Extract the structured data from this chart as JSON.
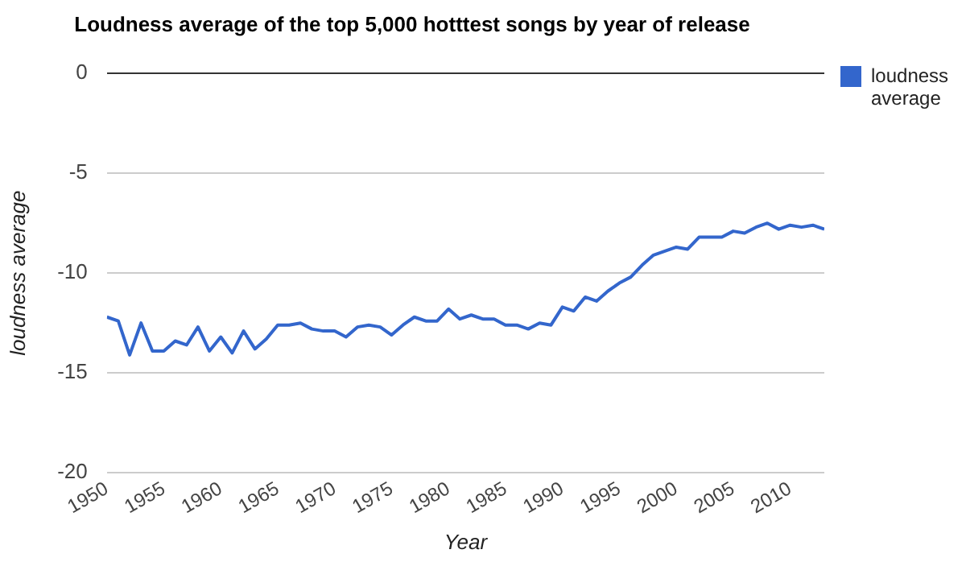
{
  "chart_data": {
    "type": "line",
    "title": "Loudness average of the top 5,000 hotttest songs by year of release",
    "xlabel": "Year",
    "ylabel": "loudness average",
    "x": [
      1950,
      1951,
      1952,
      1953,
      1954,
      1955,
      1956,
      1957,
      1958,
      1959,
      1960,
      1961,
      1962,
      1963,
      1964,
      1965,
      1966,
      1967,
      1968,
      1969,
      1970,
      1971,
      1972,
      1973,
      1974,
      1975,
      1976,
      1977,
      1978,
      1979,
      1980,
      1981,
      1982,
      1983,
      1984,
      1985,
      1986,
      1987,
      1988,
      1989,
      1990,
      1991,
      1992,
      1993,
      1994,
      1995,
      1996,
      1997,
      1998,
      1999,
      2000,
      2001,
      2002,
      2003,
      2004,
      2005,
      2006,
      2007,
      2008,
      2009,
      2010,
      2011,
      2012,
      2013
    ],
    "series": [
      {
        "name": "loudness average",
        "color": "#3366cc",
        "values": [
          -12.2,
          -12.4,
          -14.1,
          -12.5,
          -13.9,
          -13.9,
          -13.4,
          -13.6,
          -12.7,
          -13.9,
          -13.2,
          -14.0,
          -12.9,
          -13.8,
          -13.3,
          -12.6,
          -12.6,
          -12.5,
          -12.8,
          -12.9,
          -12.9,
          -13.2,
          -12.7,
          -12.6,
          -12.7,
          -13.1,
          -12.6,
          -12.2,
          -12.4,
          -12.4,
          -11.8,
          -12.3,
          -12.1,
          -12.3,
          -12.3,
          -12.6,
          -12.6,
          -12.8,
          -12.5,
          -12.6,
          -11.7,
          -11.9,
          -11.2,
          -11.4,
          -10.9,
          -10.5,
          -10.2,
          -9.6,
          -9.1,
          -8.9,
          -8.7,
          -8.8,
          -8.2,
          -8.2,
          -8.2,
          -7.9,
          -8.0,
          -7.7,
          -7.5,
          -7.8,
          -7.6,
          -7.7,
          -7.6,
          -7.8
        ]
      }
    ],
    "xlim": [
      1950,
      2013
    ],
    "xticks": [
      1950,
      1955,
      1960,
      1965,
      1970,
      1975,
      1980,
      1985,
      1990,
      1995,
      2000,
      2005,
      2010
    ],
    "ylim": [
      -20,
      0
    ],
    "yticks": [
      -20,
      -15,
      -10,
      -5,
      0
    ],
    "grid": "y",
    "legend": "right",
    "marker": "none",
    "line_style": "solid"
  }
}
